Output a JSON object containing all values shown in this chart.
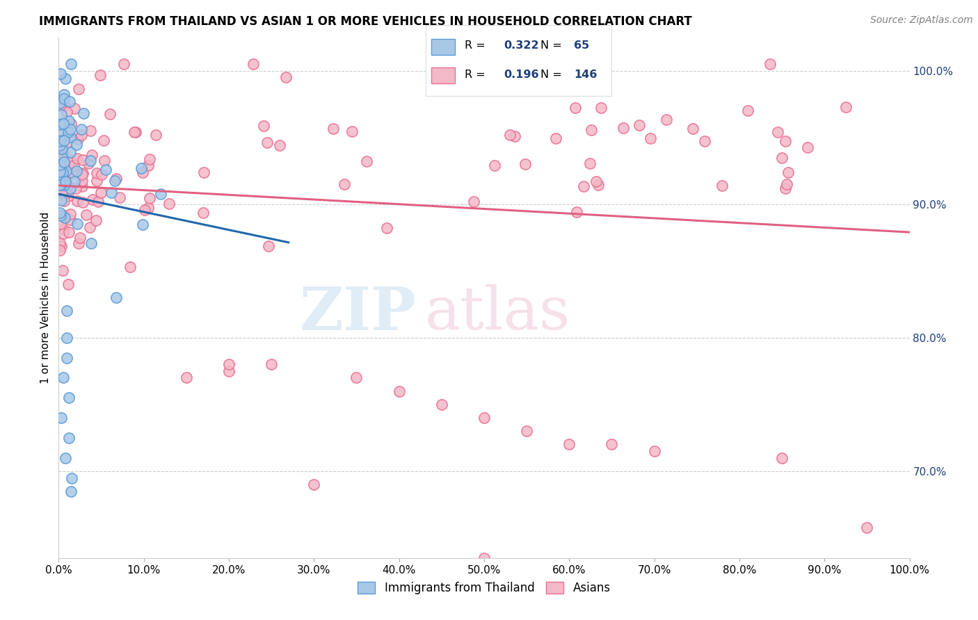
{
  "title": "IMMIGRANTS FROM THAILAND VS ASIAN 1 OR MORE VEHICLES IN HOUSEHOLD CORRELATION CHART",
  "source": "Source: ZipAtlas.com",
  "ylabel": "1 or more Vehicles in Household",
  "legend_label1": "Immigrants from Thailand",
  "legend_label2": "Asians",
  "R1": 0.322,
  "N1": 65,
  "R2": 0.196,
  "N2": 146,
  "color_blue_face": "#a8c8e8",
  "color_blue_edge": "#5b9bd5",
  "color_blue_line": "#2166ac",
  "color_pink_face": "#f4b8c8",
  "color_pink_edge": "#e87090",
  "color_pink_line": "#e06080",
  "xmin": 0.0,
  "xmax": 1.0,
  "ymin": 0.635,
  "ymax": 1.025,
  "right_yticks": [
    0.7,
    0.8,
    0.9,
    1.0
  ],
  "legend_text_color": "#1f3f7a",
  "title_fontsize": 12,
  "source_fontsize": 10,
  "marker_size": 120
}
